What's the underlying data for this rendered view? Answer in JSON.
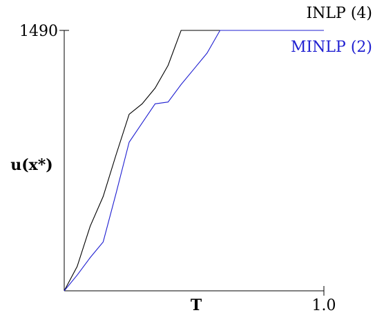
{
  "chart_data": {
    "type": "line",
    "xlabel": "T",
    "ylabel": "u(x*)",
    "xlim": [
      0,
      1.0
    ],
    "ylim": [
      0,
      1490
    ],
    "x_tick_labels": [
      {
        "value": 1.0,
        "label": "1.0"
      }
    ],
    "y_tick_labels": [
      {
        "value": 1490,
        "label": "1490"
      }
    ],
    "grid": false,
    "legend_position": "top-right",
    "series": [
      {
        "name": "INLP (4)",
        "color": "#000000",
        "x": [
          0,
          0.05,
          0.1,
          0.15,
          0.2,
          0.25,
          0.3,
          0.35,
          0.4,
          0.45,
          0.5,
          0.55,
          0.6,
          0.65,
          0.7,
          0.75,
          0.8,
          0.85,
          0.9,
          0.95,
          1.0
        ],
        "values": [
          0,
          140,
          370,
          540,
          780,
          1010,
          1070,
          1160,
          1290,
          1490,
          1490,
          1490,
          1490,
          1490,
          1490,
          1490,
          1490,
          1490,
          1490,
          1490,
          1490
        ]
      },
      {
        "name": "MINLP (2)",
        "color": "#1f1fd1",
        "x": [
          0,
          0.05,
          0.1,
          0.15,
          0.2,
          0.25,
          0.3,
          0.35,
          0.4,
          0.45,
          0.5,
          0.55,
          0.6,
          0.65,
          0.7,
          0.75,
          0.8,
          0.85,
          0.9,
          0.95,
          1.0
        ],
        "values": [
          0,
          90,
          190,
          280,
          560,
          850,
          960,
          1070,
          1080,
          1180,
          1270,
          1360,
          1490,
          1490,
          1490,
          1490,
          1490,
          1490,
          1490,
          1490,
          1490
        ]
      }
    ]
  }
}
